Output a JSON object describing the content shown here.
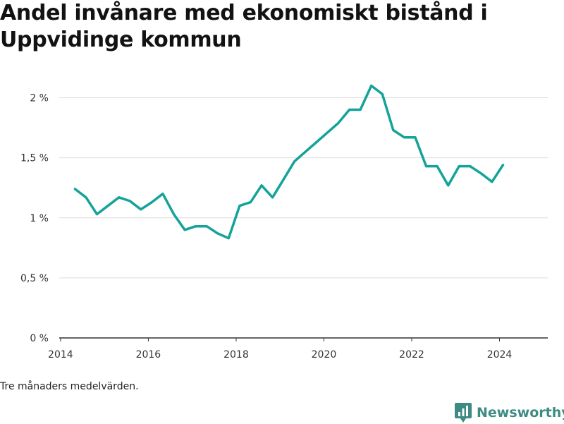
{
  "title": "Andel invånare med ekonomiskt bistånd i Uppvidinge kommun",
  "note": "Tre månaders medelvärden.",
  "brand": {
    "name": "Newsworthy",
    "icon": "newsworthy-logo-icon"
  },
  "colors": {
    "line": "#14a39a",
    "grid": "#dedede",
    "axis": "#333333",
    "brand": "#3d8b84"
  },
  "chart_data": {
    "type": "line",
    "x_axis": {
      "ticks": [
        "2014",
        "2016",
        "2018",
        "2020",
        "2022",
        "2024"
      ],
      "range": [
        2013.97,
        2025.1
      ]
    },
    "y_axis": {
      "ticks": [
        0,
        0.5,
        1,
        1.5,
        2
      ],
      "tick_labels": [
        "0 %",
        "0,5 %",
        "1 %",
        "1,5 %",
        "2 %"
      ],
      "range": [
        0,
        2.05
      ]
    },
    "grid": true,
    "series": [
      {
        "x": [
          2014.33,
          2014.58,
          2014.83,
          2015.08,
          2015.33,
          2015.58,
          2015.83,
          2016.08,
          2016.33,
          2016.58,
          2016.83,
          2017.08,
          2017.33,
          2017.58,
          2017.83,
          2018.08,
          2018.33,
          2018.58,
          2018.83,
          2019.08,
          2019.33,
          2019.58,
          2019.83,
          2020.08,
          2020.33,
          2020.58,
          2020.83,
          2021.08,
          2021.33,
          2021.58,
          2021.83,
          2022.08,
          2022.33,
          2022.58,
          2022.83,
          2023.08,
          2023.33,
          2023.58,
          2023.83,
          2024.08
        ],
        "y": [
          1.24,
          1.17,
          1.03,
          1.1,
          1.17,
          1.14,
          1.07,
          1.13,
          1.2,
          1.03,
          0.9,
          0.93,
          0.93,
          0.87,
          0.83,
          1.1,
          1.13,
          1.27,
          1.17,
          1.32,
          1.47,
          1.55,
          1.63,
          1.71,
          1.79,
          1.9,
          1.9,
          2.1,
          2.03,
          1.73,
          1.67,
          1.67,
          1.43,
          1.43,
          1.27,
          1.43,
          1.43,
          1.37,
          1.3,
          1.44
        ]
      }
    ]
  }
}
